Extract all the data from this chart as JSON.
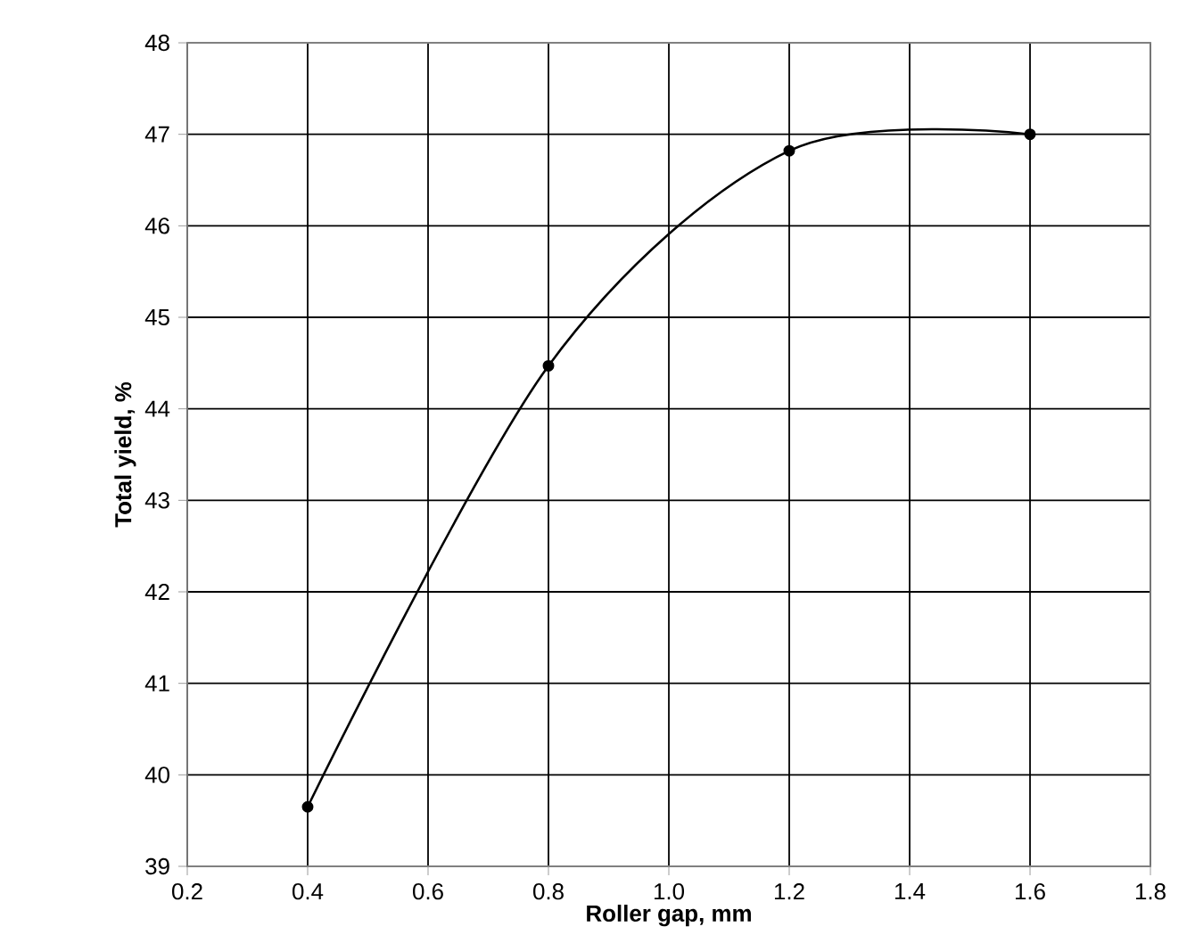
{
  "chart_data": {
    "type": "line",
    "xlabel": "Roller gap, mm",
    "ylabel": "Total yield, %",
    "x": [
      0.4,
      0.8,
      1.2,
      1.6
    ],
    "series": [
      {
        "color": "#000000",
        "values": [
          39.65,
          44.47,
          46.82,
          47.0
        ]
      }
    ],
    "xlim": [
      0.2,
      1.8
    ],
    "ylim": [
      39,
      48
    ],
    "xticks": [
      0.2,
      0.4,
      0.6,
      0.8,
      {
        "value": 1.0,
        "label": "1.0"
      },
      1.2,
      1.4,
      1.6,
      1.8
    ],
    "yticks": [
      39,
      40,
      41,
      42,
      43,
      44,
      45,
      46,
      47,
      48
    ],
    "grid": true,
    "marker": "circle",
    "line_style": "solid"
  }
}
